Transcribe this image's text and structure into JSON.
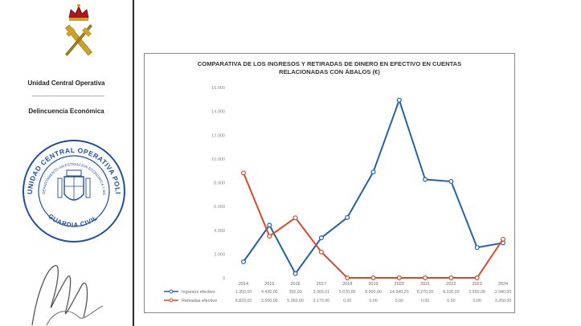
{
  "sidebar": {
    "unit_name": "Unidad Central Operativa",
    "dept_name": "Delincuencia Económica",
    "stamp": {
      "outer_text": "UNIDAD CENTRAL OPERATIVA POLICIA JUDICIAL",
      "inner_text": "DEPARTAMENTO INVESTIGACION ECONOMICA Y ANTICORRUPCION",
      "bottom_text": "GUARDIA CIVIL"
    }
  },
  "colors": {
    "ingresos": "#2461a8",
    "retiradas": "#d84a27",
    "emblem_red": "#b0141c",
    "emblem_gold": "#c9a227",
    "stamp_blue": "#1e4f9c"
  },
  "chart_data": {
    "type": "line",
    "title_line1": "COMPARATIVA DE LOS INGRESOS Y RETIRADAS DE DINERO EN EFECTIVO EN CUENTAS",
    "title_line2": "RELACIONADAS CON ÁBALOS (€)",
    "categories": [
      "2014",
      "2015",
      "2016",
      "2017",
      "2018",
      "2019",
      "2020",
      "2021",
      "2022",
      "2023",
      "2024"
    ],
    "ylim": [
      0,
      16000
    ],
    "yticks": [
      "0",
      "2.000",
      "4.000",
      "6.000",
      "8.000",
      "10.000",
      "12.000",
      "14.000",
      "16.000"
    ],
    "grid": false,
    "series": [
      {
        "name": "Ingresos efectivo",
        "color": "#2461a8",
        "values": [
          1350,
          4430,
          355,
          3365.01,
          5070,
          8900,
          14940.2,
          8270,
          8100,
          2550,
          2940
        ],
        "labels": [
          "1.350,00",
          "4.430,00",
          "355,00",
          "3.365,01",
          "5.070,00",
          "8.900,00",
          "14.940,20",
          "8.270,00",
          "8.100,00",
          "2.550,00",
          "2.940,00"
        ]
      },
      {
        "name": "Retiradas efectivo",
        "color": "#d84a27",
        "values": [
          8820,
          3500,
          5050,
          2170,
          0,
          0,
          0,
          0,
          0,
          0,
          3250
        ],
        "labels": [
          "8.820,00",
          "3.500,00",
          "5.050,00",
          "2.170,00",
          "0,00",
          "0,00",
          "0,00",
          "0,00",
          "0,00",
          "0,00",
          "3.250,00"
        ]
      }
    ]
  }
}
